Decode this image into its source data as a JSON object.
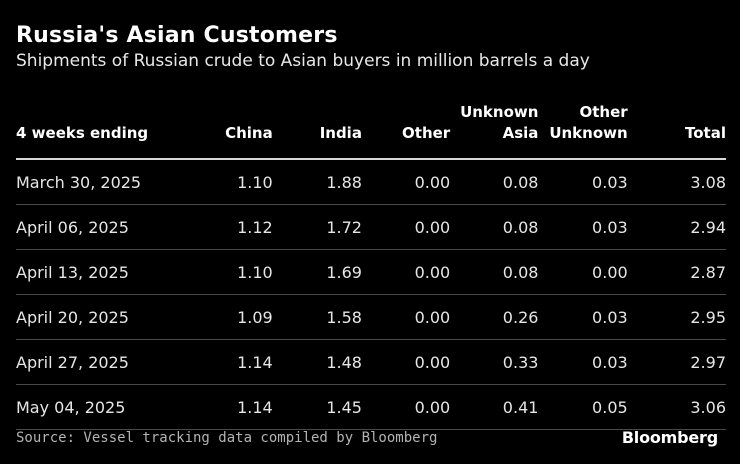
{
  "title": "Russia's Asian Customers",
  "subtitle": "Shipments of Russian crude to Asian buyers in million barrels a day",
  "headers": [
    "4 weeks ending",
    "China",
    "India",
    "Other",
    "Unknown\nAsia",
    "Other\nUnknown",
    "Total"
  ],
  "rows": [
    [
      "March 30, 2025",
      "1.10",
      "1.88",
      "0.00",
      "0.08",
      "0.03",
      "3.08"
    ],
    [
      "April 06, 2025",
      "1.12",
      "1.72",
      "0.00",
      "0.08",
      "0.03",
      "2.94"
    ],
    [
      "April 13, 2025",
      "1.10",
      "1.69",
      "0.00",
      "0.08",
      "0.00",
      "2.87"
    ],
    [
      "April 20, 2025",
      "1.09",
      "1.58",
      "0.00",
      "0.26",
      "0.03",
      "2.95"
    ],
    [
      "April 27, 2025",
      "1.14",
      "1.48",
      "0.00",
      "0.33",
      "0.03",
      "2.97"
    ],
    [
      "May 04, 2025",
      "1.14",
      "1.45",
      "0.00",
      "0.41",
      "0.05",
      "3.06"
    ]
  ],
  "source": "Source: Vessel tracking data compiled by Bloomberg",
  "brand": "Bloomberg",
  "colors": {
    "background": "#000000",
    "text": "#ffffff",
    "rule": "#d9d9d9",
    "divider": "#4a4a4a"
  },
  "chart_data": {
    "type": "table",
    "title": "Russia's Asian Customers",
    "subtitle": "Shipments of Russian crude to Asian buyers in million barrels a day",
    "columns": [
      "4 weeks ending",
      "China",
      "India",
      "Other",
      "Unknown Asia",
      "Other Unknown",
      "Total"
    ],
    "categories": [
      "March 30, 2025",
      "April 06, 2025",
      "April 13, 2025",
      "April 20, 2025",
      "April 27, 2025",
      "May 04, 2025"
    ],
    "series": [
      {
        "name": "China",
        "values": [
          1.1,
          1.12,
          1.1,
          1.09,
          1.14,
          1.14
        ]
      },
      {
        "name": "India",
        "values": [
          1.88,
          1.72,
          1.69,
          1.58,
          1.48,
          1.45
        ]
      },
      {
        "name": "Other",
        "values": [
          0.0,
          0.0,
          0.0,
          0.0,
          0.0,
          0.0
        ]
      },
      {
        "name": "Unknown Asia",
        "values": [
          0.08,
          0.08,
          0.08,
          0.26,
          0.33,
          0.41
        ]
      },
      {
        "name": "Other Unknown",
        "values": [
          0.03,
          0.03,
          0.0,
          0.03,
          0.03,
          0.05
        ]
      },
      {
        "name": "Total",
        "values": [
          3.08,
          2.94,
          2.87,
          2.95,
          2.97,
          3.06
        ]
      }
    ]
  }
}
